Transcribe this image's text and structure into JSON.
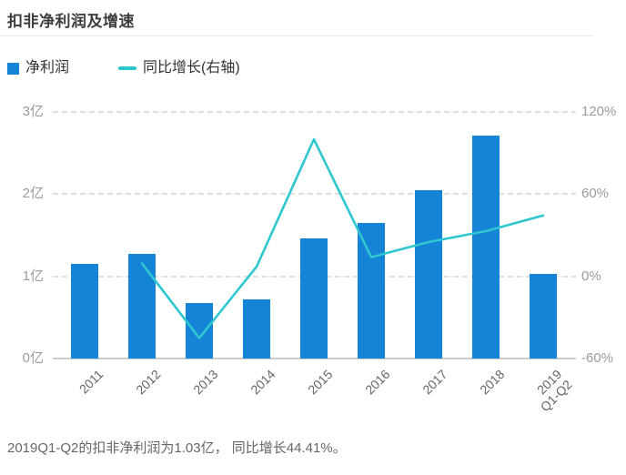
{
  "header": {
    "title": "扣非净利润及增速"
  },
  "legend": [
    {
      "name": "净利润",
      "type": "bar",
      "color": "#1584d6"
    },
    {
      "name": "同比增长(右轴)",
      "type": "line",
      "color": "#2fc7cf"
    }
  ],
  "chart_data": {
    "type": "bar",
    "title": "扣非净利润及增速",
    "categories": [
      "2011",
      "2012",
      "2013",
      "2014",
      "2015",
      "2016",
      "2017",
      "2018",
      "2019\nQ1-Q2"
    ],
    "series": [
      {
        "name": "净利润",
        "type": "bar",
        "axis": "left",
        "unit": "亿",
        "color": "#1584d6",
        "values": [
          1.15,
          1.27,
          0.67,
          0.72,
          1.46,
          1.65,
          2.05,
          2.71,
          1.03
        ]
      },
      {
        "name": "同比增长(右轴)",
        "type": "line",
        "axis": "right",
        "unit": "%",
        "color": "#2fc7cf",
        "values": [
          null,
          9.5,
          -45,
          7,
          100,
          14,
          25,
          33,
          44.41
        ]
      }
    ],
    "left_axis": {
      "ticks": [
        0,
        1,
        2,
        3
      ],
      "labels": [
        "0亿",
        "1亿",
        "2亿",
        "3亿"
      ],
      "range": [
        0,
        3
      ]
    },
    "right_axis": {
      "ticks": [
        -60,
        0,
        60,
        120
      ],
      "labels": [
        "-60%",
        "0%",
        "60%",
        "120%"
      ],
      "range": [
        -60,
        120
      ]
    },
    "grid": true,
    "legend_position": "top-left"
  },
  "caption": {
    "text": "2019Q1-Q2的扣非净利润为1.03亿， 同比增长44.41%。"
  }
}
